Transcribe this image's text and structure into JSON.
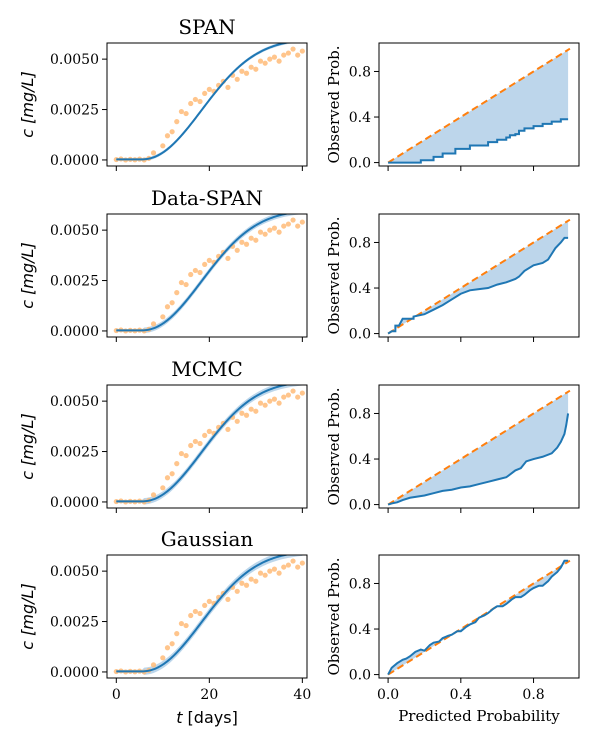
{
  "chart_data": [
    {
      "type": "line",
      "title": "SPAN",
      "ylabel_var": "c",
      "ylabel_unit": "[mg/L]",
      "xlabel": "",
      "xlim": [
        -2,
        41
      ],
      "ylim": [
        -0.0003,
        0.0058
      ],
      "xticks": [
        0,
        20,
        40
      ],
      "yticks": [
        {
          "v": 0,
          "label": "0.0000"
        },
        {
          "v": 0.0025,
          "label": "0.0025"
        },
        {
          "v": 0.005,
          "label": "0.0050"
        }
      ],
      "show_xticklabels": false,
      "band_width": 8e-05,
      "colors": {
        "line": "#1f77b4",
        "band": "#a6c8e4",
        "points": "#ffbb78"
      }
    },
    {
      "type": "line",
      "title": "SPAN",
      "ylabel": "Observed Prob.",
      "xlim": [
        -0.05,
        1.05
      ],
      "ylim": [
        -0.03,
        1.05
      ],
      "xticks": [
        0,
        0.4,
        0.8
      ],
      "yticks": [
        {
          "v": 0,
          "label": "0.0"
        },
        {
          "v": 0.4,
          "label": "0.4"
        },
        {
          "v": 0.8,
          "label": "0.8"
        }
      ],
      "show_xticklabels": false,
      "series": [
        {
          "x": [
            0,
            0.02,
            0.1,
            0.18,
            0.18,
            0.25,
            0.25,
            0.3,
            0.3,
            0.37,
            0.37,
            0.45,
            0.45,
            0.55,
            0.55,
            0.6,
            0.6,
            0.65,
            0.65,
            0.67,
            0.67,
            0.7,
            0.7,
            0.72,
            0.72,
            0.75,
            0.75,
            0.8,
            0.8,
            0.85,
            0.85,
            0.9,
            0.9,
            0.95,
            0.95,
            0.99
          ],
          "y": [
            0,
            0,
            0,
            0,
            0.02,
            0.02,
            0.05,
            0.05,
            0.08,
            0.08,
            0.12,
            0.12,
            0.15,
            0.15,
            0.18,
            0.18,
            0.2,
            0.2,
            0.22,
            0.22,
            0.24,
            0.24,
            0.25,
            0.25,
            0.28,
            0.28,
            0.3,
            0.3,
            0.32,
            0.32,
            0.34,
            0.34,
            0.36,
            0.36,
            0.38,
            0.38
          ]
        }
      ],
      "colors": {
        "line": "#1f77b4",
        "diag": "#ff7f0e",
        "fill": "#b9d4ea"
      }
    },
    {
      "type": "line",
      "title": "Data-SPAN",
      "ylabel_var": "c",
      "ylabel_unit": "[mg/L]",
      "xlabel": "",
      "xlim": [
        -2,
        41
      ],
      "ylim": [
        -0.0003,
        0.0058
      ],
      "xticks": [
        0,
        20,
        40
      ],
      "yticks": [
        {
          "v": 0,
          "label": "0.0000"
        },
        {
          "v": 0.0025,
          "label": "0.0025"
        },
        {
          "v": 0.005,
          "label": "0.0050"
        }
      ],
      "show_xticklabels": false,
      "band_width": 0.00014,
      "colors": {
        "line": "#1f77b4",
        "band": "#a6c8e4",
        "points": "#ffbb78"
      }
    },
    {
      "type": "line",
      "title": "Data-SPAN",
      "ylabel": "Observed Prob.",
      "xlim": [
        -0.05,
        1.05
      ],
      "ylim": [
        -0.03,
        1.05
      ],
      "xticks": [
        0,
        0.4,
        0.8
      ],
      "yticks": [
        {
          "v": 0,
          "label": "0.0"
        },
        {
          "v": 0.4,
          "label": "0.4"
        },
        {
          "v": 0.8,
          "label": "0.8"
        }
      ],
      "show_xticklabels": false,
      "series": [
        {
          "x": [
            0,
            0.02,
            0.04,
            0.04,
            0.06,
            0.08,
            0.08,
            0.1,
            0.14,
            0.14,
            0.2,
            0.25,
            0.3,
            0.35,
            0.4,
            0.45,
            0.5,
            0.55,
            0.6,
            0.65,
            0.7,
            0.72,
            0.75,
            0.8,
            0.85,
            0.88,
            0.9,
            0.92,
            0.95,
            0.97,
            0.99
          ],
          "y": [
            0,
            0.02,
            0.02,
            0.07,
            0.07,
            0.13,
            0.13,
            0.13,
            0.13,
            0.15,
            0.17,
            0.21,
            0.25,
            0.3,
            0.35,
            0.38,
            0.39,
            0.4,
            0.43,
            0.45,
            0.48,
            0.5,
            0.55,
            0.6,
            0.62,
            0.65,
            0.7,
            0.75,
            0.8,
            0.84,
            0.84
          ]
        }
      ],
      "colors": {
        "line": "#1f77b4",
        "diag": "#ff7f0e",
        "fill": "#b9d4ea"
      }
    },
    {
      "type": "line",
      "title": "MCMC",
      "ylabel_var": "c",
      "ylabel_unit": "[mg/L]",
      "xlabel": "",
      "xlim": [
        -2,
        41
      ],
      "ylim": [
        -0.0003,
        0.0058
      ],
      "xticks": [
        0,
        20,
        40
      ],
      "yticks": [
        {
          "v": 0,
          "label": "0.0000"
        },
        {
          "v": 0.0025,
          "label": "0.0025"
        },
        {
          "v": 0.005,
          "label": "0.0050"
        }
      ],
      "show_xticklabels": false,
      "band_width": 0.00016,
      "colors": {
        "line": "#1f77b4",
        "band": "#a6c8e4",
        "points": "#ffbb78"
      }
    },
    {
      "type": "line",
      "title": "MCMC",
      "ylabel": "Observed Prob.",
      "xlim": [
        -0.05,
        1.05
      ],
      "ylim": [
        -0.03,
        1.05
      ],
      "xticks": [
        0,
        0.4,
        0.8
      ],
      "yticks": [
        {
          "v": 0,
          "label": "0.0"
        },
        {
          "v": 0.4,
          "label": "0.4"
        },
        {
          "v": 0.8,
          "label": "0.8"
        }
      ],
      "show_xticklabels": false,
      "series": [
        {
          "x": [
            0,
            0.02,
            0.05,
            0.08,
            0.12,
            0.16,
            0.2,
            0.25,
            0.3,
            0.35,
            0.4,
            0.45,
            0.5,
            0.55,
            0.6,
            0.65,
            0.7,
            0.73,
            0.76,
            0.8,
            0.85,
            0.9,
            0.93,
            0.95,
            0.97,
            0.98,
            0.99
          ],
          "y": [
            0,
            0.01,
            0.02,
            0.04,
            0.06,
            0.07,
            0.08,
            0.1,
            0.12,
            0.13,
            0.15,
            0.16,
            0.18,
            0.2,
            0.22,
            0.24,
            0.3,
            0.32,
            0.38,
            0.4,
            0.42,
            0.45,
            0.5,
            0.55,
            0.62,
            0.7,
            0.8
          ]
        }
      ],
      "colors": {
        "line": "#1f77b4",
        "diag": "#ff7f0e",
        "fill": "#b9d4ea"
      }
    },
    {
      "type": "line",
      "title": "Gaussian",
      "ylabel_var": "c",
      "ylabel_unit": "[mg/L]",
      "xlabel_var": "t",
      "xlabel_unit": "[days]",
      "xlim": [
        -2,
        41
      ],
      "ylim": [
        -0.0003,
        0.0058
      ],
      "xticks": [
        0,
        20,
        40
      ],
      "yticks": [
        {
          "v": 0,
          "label": "0.0000"
        },
        {
          "v": 0.0025,
          "label": "0.0025"
        },
        {
          "v": 0.005,
          "label": "0.0050"
        }
      ],
      "xticklabels": [
        "0",
        "20",
        "40"
      ],
      "show_xticklabels": true,
      "band_width": 0.00018,
      "colors": {
        "line": "#1f77b4",
        "band": "#a6c8e4",
        "points": "#ffbb78"
      }
    },
    {
      "type": "line",
      "title": "Gaussian",
      "ylabel": "Observed Prob.",
      "xlabel": "Predicted Probability",
      "xlim": [
        -0.05,
        1.05
      ],
      "ylim": [
        -0.03,
        1.05
      ],
      "xticks": [
        0,
        0.4,
        0.8
      ],
      "yticks": [
        {
          "v": 0,
          "label": "0.0"
        },
        {
          "v": 0.4,
          "label": "0.4"
        },
        {
          "v": 0.8,
          "label": "0.8"
        }
      ],
      "xticklabels": [
        "0.0",
        "0.4",
        "0.8"
      ],
      "show_xticklabels": true,
      "series": [
        {
          "x": [
            0,
            0.02,
            0.05,
            0.08,
            0.1,
            0.12,
            0.15,
            0.18,
            0.2,
            0.23,
            0.25,
            0.28,
            0.3,
            0.33,
            0.35,
            0.38,
            0.4,
            0.43,
            0.45,
            0.48,
            0.5,
            0.53,
            0.55,
            0.58,
            0.6,
            0.63,
            0.65,
            0.68,
            0.7,
            0.73,
            0.75,
            0.78,
            0.8,
            0.83,
            0.85,
            0.88,
            0.9,
            0.93,
            0.95,
            0.97,
            0.99
          ],
          "y": [
            0,
            0.06,
            0.1,
            0.13,
            0.14,
            0.16,
            0.2,
            0.22,
            0.21,
            0.26,
            0.28,
            0.29,
            0.32,
            0.34,
            0.35,
            0.38,
            0.38,
            0.42,
            0.44,
            0.46,
            0.5,
            0.52,
            0.54,
            0.58,
            0.6,
            0.6,
            0.62,
            0.66,
            0.68,
            0.68,
            0.7,
            0.74,
            0.76,
            0.78,
            0.78,
            0.82,
            0.86,
            0.9,
            0.94,
            1.0,
            1.0
          ]
        }
      ],
      "colors": {
        "line": "#1f77b4",
        "diag": "#ff7f0e",
        "fill": "#b9d4ea"
      }
    }
  ],
  "scatter_points": [
    {
      "t": 0,
      "c": 2e-05
    },
    {
      "t": 1,
      "c": 5e-05
    },
    {
      "t": 2,
      "c": 0.0
    },
    {
      "t": 3,
      "c": 3e-05
    },
    {
      "t": 4,
      "c": 1e-05
    },
    {
      "t": 5,
      "c": 4e-05
    },
    {
      "t": 6,
      "c": 0.0
    },
    {
      "t": 7,
      "c": 8e-05
    },
    {
      "t": 8,
      "c": 0.00035
    },
    {
      "t": 10,
      "c": 0.0007
    },
    {
      "t": 11,
      "c": 0.0012
    },
    {
      "t": 12,
      "c": 0.0014
    },
    {
      "t": 13,
      "c": 0.0019
    },
    {
      "t": 14,
      "c": 0.0024
    },
    {
      "t": 15,
      "c": 0.0023
    },
    {
      "t": 16,
      "c": 0.0028
    },
    {
      "t": 17,
      "c": 0.003
    },
    {
      "t": 18,
      "c": 0.0029
    },
    {
      "t": 19,
      "c": 0.0033
    },
    {
      "t": 20,
      "c": 0.0035
    },
    {
      "t": 21,
      "c": 0.0034
    },
    {
      "t": 22,
      "c": 0.0037
    },
    {
      "t": 23,
      "c": 0.0039
    },
    {
      "t": 24,
      "c": 0.0036
    },
    {
      "t": 25,
      "c": 0.0042
    },
    {
      "t": 26,
      "c": 0.004
    },
    {
      "t": 27,
      "c": 0.0044
    },
    {
      "t": 28,
      "c": 0.0043
    },
    {
      "t": 29,
      "c": 0.0046
    },
    {
      "t": 30,
      "c": 0.0045
    },
    {
      "t": 31,
      "c": 0.0049
    },
    {
      "t": 32,
      "c": 0.0048
    },
    {
      "t": 33,
      "c": 0.005
    },
    {
      "t": 34,
      "c": 0.0051
    },
    {
      "t": 35,
      "c": 0.0049
    },
    {
      "t": 36,
      "c": 0.0052
    },
    {
      "t": 37,
      "c": 0.0053
    },
    {
      "t": 38,
      "c": 0.0055
    },
    {
      "t": 39,
      "c": 0.0052
    },
    {
      "t": 40,
      "c": 0.0054
    }
  ]
}
